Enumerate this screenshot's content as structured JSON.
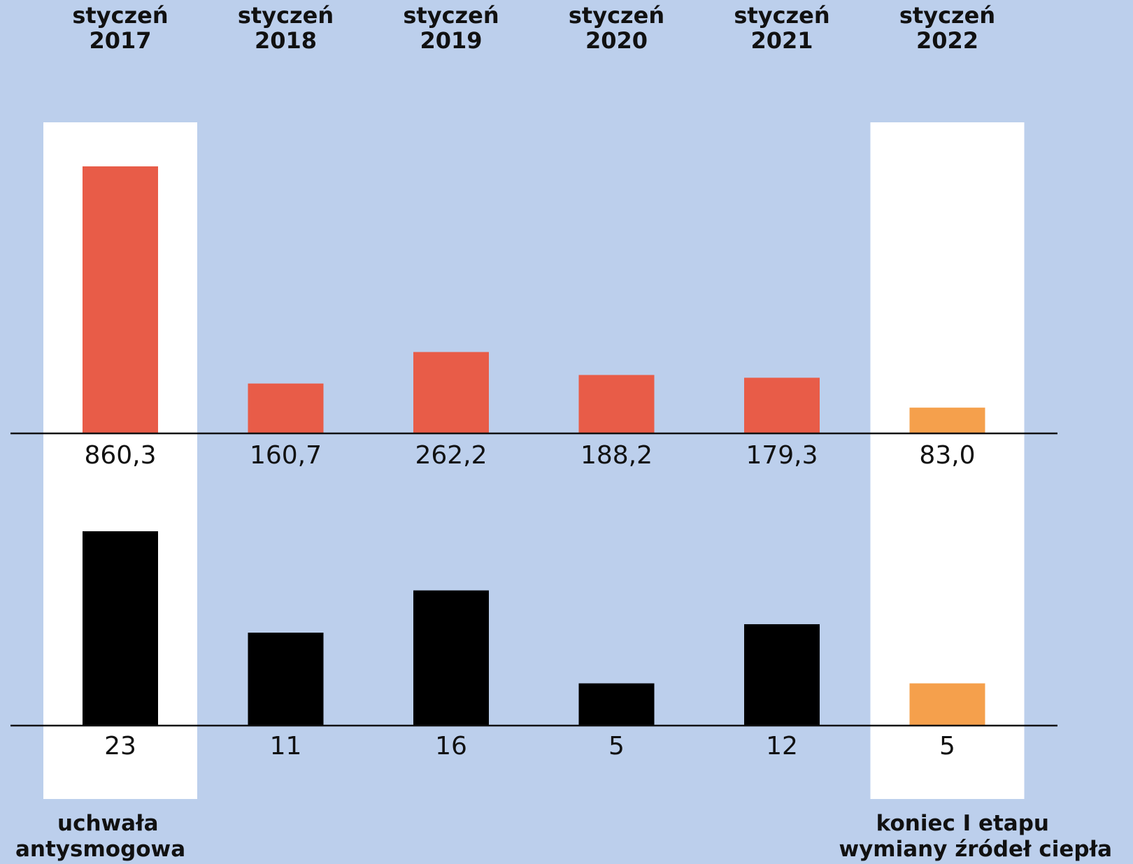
{
  "chart_data": {
    "type": "bar",
    "categories": [
      [
        "styczeń",
        "2017"
      ],
      [
        "styczeń",
        "2018"
      ],
      [
        "styczeń",
        "2019"
      ],
      [
        "styczeń",
        "2020"
      ],
      [
        "styczeń",
        "2021"
      ],
      [
        "styczeń",
        "2022"
      ]
    ],
    "highlighted_categories": [
      0,
      5
    ],
    "series": [
      {
        "values": [
          860.3,
          160.7,
          262.2,
          188.2,
          179.3,
          83.0
        ],
        "labels": [
          "860,3",
          "160,7",
          "262,2",
          "188,2",
          "179,3",
          "83,0"
        ],
        "colors": [
          "#e85c48",
          "#e85c48",
          "#e85c48",
          "#e85c48",
          "#e85c48",
          "#f5a04c"
        ]
      },
      {
        "values": [
          23,
          11,
          16,
          5,
          12,
          5
        ],
        "labels": [
          "23",
          "11",
          "16",
          "5",
          "12",
          "5"
        ],
        "colors": [
          "#000000",
          "#000000",
          "#000000",
          "#000000",
          "#000000",
          "#f5a04c"
        ]
      }
    ],
    "annotations": [
      {
        "category": 0,
        "lines": [
          "uchwała",
          "antysmogowa"
        ],
        "align": "left"
      },
      {
        "category": 5,
        "lines": [
          "koniec I etapu",
          "wymiany źródeł ciepła"
        ],
        "align": "right"
      }
    ],
    "colors": {
      "background": "#bccfec",
      "highlight_band": "#ffffff",
      "axis": "#111111"
    }
  }
}
